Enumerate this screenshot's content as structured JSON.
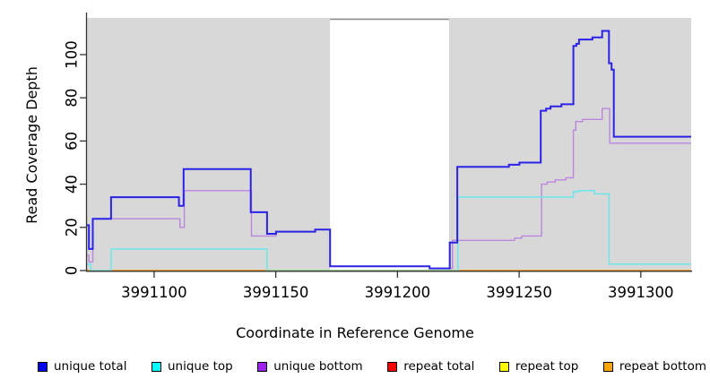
{
  "chart_data": {
    "type": "line",
    "subtype": "step-coverage-plot",
    "title": "",
    "xlabel": "Coordinate in Reference Genome",
    "ylabel": "Read Coverage Depth",
    "xlim": [
      3991072.4,
      3991320.7
    ],
    "ylim": [
      0,
      117
    ],
    "x_ticks": [
      3991100,
      3991150,
      3991200,
      3991250,
      3991300
    ],
    "y_ticks": [
      0,
      20,
      40,
      60,
      80,
      100
    ],
    "grid": false,
    "legend_position": "bottom",
    "colors": {
      "plot_background_band": "#d8d8d8",
      "gap_background": "#ffffff",
      "gap_top_border": "#8c8c8c",
      "axis": "#333333",
      "zero_overlap_green": "#96d78f"
    },
    "background_bands": [
      {
        "x1": 3991072.4,
        "x2": 3991172.3
      },
      {
        "x1": 3991221.2,
        "x2": 3991320.7
      }
    ],
    "gap_region": {
      "x1": 3991172.3,
      "x2": 3991221.2,
      "top_border_y": 116.4
    },
    "zero_overlap_segment": {
      "x1": 3991146.4,
      "x2": 3991224.8,
      "y": 0
    },
    "series": [
      {
        "name": "repeat_total",
        "legend_label": "repeat total",
        "legend_color": "#ff0000",
        "line_color": "#ff0000",
        "width": 1.2,
        "points": [
          [
            3991072.4,
            0
          ]
        ]
      },
      {
        "name": "repeat_top",
        "legend_label": "repeat top",
        "legend_color": "#ffff00",
        "line_color": "#ffe500",
        "width": 1.2,
        "points": [
          [
            3991072.4,
            0
          ]
        ]
      },
      {
        "name": "repeat_bottom",
        "legend_label": "repeat bottom",
        "legend_color": "#ffa500",
        "line_color": "#ff9d1e",
        "width": 1.6,
        "points": [
          [
            3991072.4,
            0
          ]
        ]
      },
      {
        "name": "unique_bottom",
        "legend_label": "unique bottom",
        "legend_color": "#a020f0",
        "line_color": "#bb86e0",
        "width": 1.4,
        "points": [
          [
            3991072.4,
            7
          ],
          [
            3991073.2,
            4
          ],
          [
            3991074.8,
            24
          ],
          [
            3991110.6,
            20
          ],
          [
            3991112.4,
            37
          ],
          [
            3991140.0,
            16
          ],
          [
            3991150.1,
            18
          ],
          [
            3991166.2,
            19
          ],
          [
            3991172.3,
            2
          ],
          [
            3991213.2,
            1
          ],
          [
            3991222.6,
            14
          ],
          [
            3991248.1,
            15
          ],
          [
            3991251.1,
            16
          ],
          [
            3991259.2,
            40
          ],
          [
            3991261.5,
            41
          ],
          [
            3991264.8,
            42
          ],
          [
            3991269.2,
            43
          ],
          [
            3991272.3,
            65
          ],
          [
            3991273.3,
            69
          ],
          [
            3991276.0,
            70
          ],
          [
            3991284.1,
            75
          ],
          [
            3991287.2,
            59
          ]
        ]
      },
      {
        "name": "unique_top",
        "legend_label": "unique top",
        "legend_color": "#00ffff",
        "line_color": "#63e9eb",
        "width": 1.4,
        "points": [
          [
            3991072.4,
            3
          ],
          [
            3991074.0,
            0
          ],
          [
            3991082.4,
            10
          ],
          [
            3991146.4,
            0
          ],
          [
            3991224.8,
            34
          ],
          [
            3991272.3,
            36.5
          ],
          [
            3991274.5,
            37
          ],
          [
            3991281.0,
            35.5
          ],
          [
            3991287.0,
            3
          ]
        ]
      },
      {
        "name": "unique_total",
        "legend_label": "unique total",
        "legend_color": "#0000f0",
        "line_color": "#2b22e8",
        "width": 2,
        "points": [
          [
            3991072.4,
            21
          ],
          [
            3991073.2,
            10
          ],
          [
            3991074.8,
            24
          ],
          [
            3991082.3,
            34
          ],
          [
            3991110.2,
            30
          ],
          [
            3991112.1,
            47
          ],
          [
            3991139.7,
            27
          ],
          [
            3991146.4,
            17
          ],
          [
            3991150.1,
            18
          ],
          [
            3991166.2,
            19
          ],
          [
            3991172.3,
            2
          ],
          [
            3991213.2,
            1
          ],
          [
            3991221.5,
            13
          ],
          [
            3991224.6,
            48
          ],
          [
            3991245.8,
            49
          ],
          [
            3991250.1,
            50
          ],
          [
            3991258.9,
            74
          ],
          [
            3991261.1,
            75
          ],
          [
            3991262.9,
            76
          ],
          [
            3991267.4,
            77
          ],
          [
            3991272.3,
            104
          ],
          [
            3991273.5,
            105
          ],
          [
            3991274.6,
            107
          ],
          [
            3991280.1,
            108
          ],
          [
            3991284.1,
            111
          ],
          [
            3991286.9,
            96
          ],
          [
            3991288.0,
            93
          ],
          [
            3991288.9,
            62
          ]
        ]
      }
    ],
    "legend_order": [
      "unique_total",
      "unique_top",
      "unique_bottom",
      "repeat_total",
      "repeat_top",
      "repeat_bottom"
    ]
  }
}
